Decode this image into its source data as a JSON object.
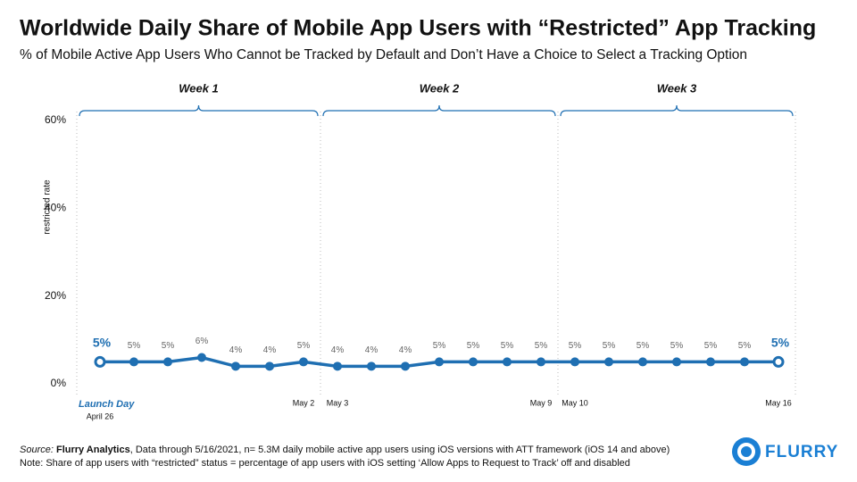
{
  "chart_data": {
    "type": "line",
    "title": "Worldwide Daily Share of Mobile App Users with “Restricted” App Tracking",
    "subtitle": "% of Mobile Active App Users Who Cannot be Tracked by Default and Don’t Have a Choice to Select a Tracking Option",
    "y_label": "restricted rate",
    "categories": [
      "April 26",
      null,
      null,
      null,
      null,
      null,
      "May 2",
      "May 3",
      null,
      null,
      null,
      null,
      null,
      "May 9",
      "May 10",
      null,
      null,
      null,
      null,
      null,
      "May 16"
    ],
    "series": [
      {
        "name": "restricted rate",
        "color": "#1f6fb2",
        "values": [
          5,
          5,
          5,
          6,
          4,
          4,
          5,
          4,
          4,
          4,
          5,
          5,
          5,
          5,
          5,
          5,
          5,
          5,
          5,
          5,
          5
        ],
        "value_labels": [
          "5%",
          "5%",
          "5%",
          "6%",
          "4%",
          "4%",
          "5%",
          "4%",
          "4%",
          "4%",
          "5%",
          "5%",
          "5%",
          "5%",
          "5%",
          "5%",
          "5%",
          "5%",
          "5%",
          "5%",
          "5%"
        ]
      }
    ],
    "ylim": [
      0,
      60
    ],
    "yticks": [
      {
        "value": 0,
        "label": "0%"
      },
      {
        "value": 20,
        "label": "20%"
      },
      {
        "value": 40,
        "label": "40%"
      },
      {
        "value": 60,
        "label": "60%"
      }
    ],
    "grid": false,
    "weeks": [
      "Week 1",
      "Week 2",
      "Week 3"
    ],
    "launch_annotation": "Launch Day",
    "source_label": "Source:",
    "source_name": "Flurry Analytics",
    "source_text": ", Data through 5/16/2021, n= 5.3M daily mobile active app users using iOS versions with ATT framework (iOS 14 and above)",
    "note": "Note: Share of app users with “restricted” status = percentage of app users with iOS setting ‘Allow Apps to Request to Track’ off and disabled",
    "logo": "FLURRY"
  }
}
